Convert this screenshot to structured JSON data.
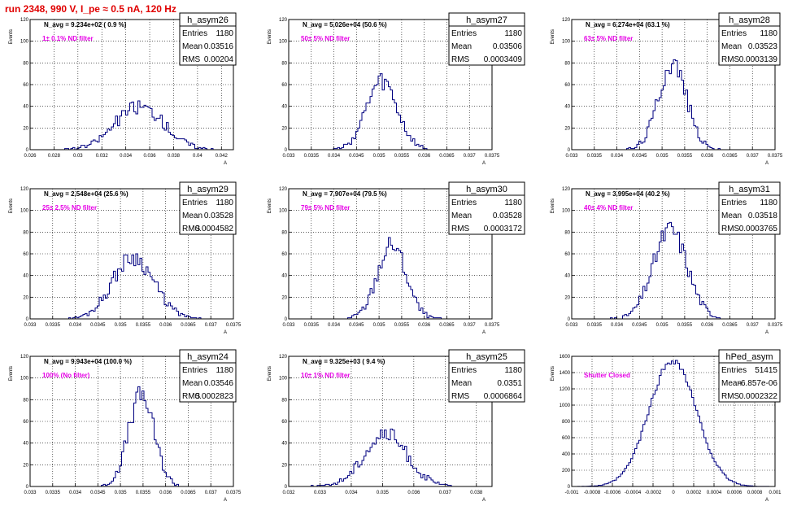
{
  "page": {
    "title": "run 2348,   990 V, I_pe ≈ 0.5 nA, 120 Hz"
  },
  "colors": {
    "line": "#000080",
    "annotation": "#e600e6",
    "title": "#e00000",
    "grid": "#000000"
  },
  "chart_data": [
    {
      "type": "histogram",
      "name": "h_asym26",
      "header": "N_avg = 9.234e+02 ( 0.9 %)",
      "annotation": "1± 0.1% ND filter",
      "ylabel": "Events",
      "xlabel": "A",
      "stats": [
        [
          "Entries",
          "1180"
        ],
        [
          "Mean",
          "0.03516"
        ],
        [
          "RMS",
          "0.00204"
        ]
      ],
      "xlim": [
        0.026,
        0.043
      ],
      "ylim": [
        0,
        120
      ],
      "xticks": [
        "0.026",
        "0.028",
        "0.03",
        "0.032",
        "0.034",
        "0.036",
        "0.038",
        "0.04",
        "0.042"
      ],
      "yticks": [
        "0",
        "20",
        "40",
        "60",
        "80",
        "100",
        "120"
      ],
      "bins": {
        "mean": 0.03516,
        "rms": 0.00204,
        "peak": 40,
        "seed": 26
      },
      "grid": true
    },
    {
      "type": "histogram",
      "name": "h_asym27",
      "header": "N_avg = 5.026e+04 (50.6 %)",
      "annotation": "50± 5% ND filter",
      "ylabel": "Events",
      "xlabel": "A",
      "stats": [
        [
          "Entries",
          "1180"
        ],
        [
          "Mean",
          "0.03506"
        ],
        [
          "RMS",
          "0.0003409"
        ]
      ],
      "xlim": [
        0.033,
        0.0375
      ],
      "ylim": [
        0,
        120
      ],
      "xticks": [
        "0.033",
        "0.0335",
        "0.034",
        "0.0345",
        "0.035",
        "0.0355",
        "0.036",
        "0.0365",
        "0.037",
        "0.0375"
      ],
      "yticks": [
        "0",
        "20",
        "40",
        "60",
        "80",
        "100",
        "120"
      ],
      "bins": {
        "mean": 0.03506,
        "rms": 0.0003409,
        "peak": 62,
        "seed": 27
      },
      "grid": true
    },
    {
      "type": "histogram",
      "name": "h_asym28",
      "header": "N_avg = 6.274e+04 (63.1 %)",
      "annotation": "63± 5% ND filter",
      "ylabel": "Events",
      "xlabel": "A",
      "stats": [
        [
          "Entries",
          "1180"
        ],
        [
          "Mean",
          "0.03523"
        ],
        [
          "RMS",
          "0.0003139"
        ]
      ],
      "xlim": [
        0.033,
        0.0375
      ],
      "ylim": [
        0,
        120
      ],
      "xticks": [
        "0.033",
        "0.0335",
        "0.034",
        "0.0345",
        "0.035",
        "0.0355",
        "0.036",
        "0.0365",
        "0.037",
        "0.0375"
      ],
      "yticks": [
        "0",
        "20",
        "40",
        "60",
        "80",
        "100",
        "120"
      ],
      "bins": {
        "mean": 0.03523,
        "rms": 0.0003139,
        "peak": 80,
        "seed": 28
      },
      "grid": true
    },
    {
      "type": "histogram",
      "name": "h_asym29",
      "header": "N_avg = 2.548e+04 (25.6 %)",
      "annotation": "25± 2.5% ND filter",
      "ylabel": "Events",
      "xlabel": "A",
      "stats": [
        [
          "Entries",
          "1180"
        ],
        [
          "Mean",
          "0.03528"
        ],
        [
          "RMS",
          "0.0004582"
        ]
      ],
      "xlim": [
        0.033,
        0.0375
      ],
      "ylim": [
        0,
        120
      ],
      "xticks": [
        "0.033",
        "0.0335",
        "0.034",
        "0.0345",
        "0.035",
        "0.0355",
        "0.036",
        "0.0365",
        "0.037",
        "0.0375"
      ],
      "yticks": [
        "0",
        "20",
        "40",
        "60",
        "80",
        "100",
        "120"
      ],
      "bins": {
        "mean": 0.03528,
        "rms": 0.0004582,
        "peak": 57,
        "seed": 29
      },
      "grid": true
    },
    {
      "type": "histogram",
      "name": "h_asym30",
      "header": "N_avg = 7.907e+04 (79.5 %)",
      "annotation": "79± 5% ND filter",
      "ylabel": "Events",
      "xlabel": "A",
      "stats": [
        [
          "Entries",
          "1180"
        ],
        [
          "Mean",
          "0.03528"
        ],
        [
          "RMS",
          "0.0003172"
        ]
      ],
      "xlim": [
        0.033,
        0.0375
      ],
      "ylim": [
        0,
        120
      ],
      "xticks": [
        "0.033",
        "0.0335",
        "0.034",
        "0.0345",
        "0.035",
        "0.0355",
        "0.036",
        "0.0365",
        "0.037",
        "0.0375"
      ],
      "yticks": [
        "0",
        "20",
        "40",
        "60",
        "80",
        "100",
        "120"
      ],
      "bins": {
        "mean": 0.03528,
        "rms": 0.0003172,
        "peak": 68,
        "seed": 30
      },
      "grid": true
    },
    {
      "type": "histogram",
      "name": "h_asym31",
      "header": "N_avg = 3.995e+04 (40.2 %)",
      "annotation": "40± 4% ND filter",
      "ylabel": "Events",
      "xlabel": "A",
      "stats": [
        [
          "Entries",
          "1180"
        ],
        [
          "Mean",
          "0.03518"
        ],
        [
          "RMS",
          "0.0003765"
        ]
      ],
      "xlim": [
        0.033,
        0.0375
      ],
      "ylim": [
        0,
        120
      ],
      "xticks": [
        "0.033",
        "0.0335",
        "0.034",
        "0.0345",
        "0.035",
        "0.0355",
        "0.036",
        "0.0365",
        "0.037",
        "0.0375"
      ],
      "yticks": [
        "0",
        "20",
        "40",
        "60",
        "80",
        "100",
        "120"
      ],
      "bins": {
        "mean": 0.03518,
        "rms": 0.0003765,
        "peak": 82,
        "seed": 31
      },
      "grid": true
    },
    {
      "type": "histogram",
      "name": "h_asym24",
      "header": "N_avg = 9.943e+04 (100.0 %)",
      "annotation": "100% (No filter)",
      "ylabel": "Events",
      "xlabel": "A",
      "stats": [
        [
          "Entries",
          "1180"
        ],
        [
          "Mean",
          "0.03546"
        ],
        [
          "RMS",
          "0.0002823"
        ]
      ],
      "xlim": [
        0.033,
        0.0375
      ],
      "ylim": [
        0,
        120
      ],
      "xticks": [
        "0.033",
        "0.0335",
        "0.034",
        "0.0345",
        "0.035",
        "0.0355",
        "0.036",
        "0.0365",
        "0.037",
        "0.0375"
      ],
      "yticks": [
        "0",
        "20",
        "40",
        "60",
        "80",
        "100",
        "120"
      ],
      "bins": {
        "mean": 0.03546,
        "rms": 0.0002823,
        "peak": 84,
        "seed": 24
      },
      "grid": true
    },
    {
      "type": "histogram",
      "name": "h_asym25",
      "header": "N_avg = 9.325e+03 ( 9.4 %)",
      "annotation": "10± 1% ND filter",
      "ylabel": "Events",
      "xlabel": "A",
      "stats": [
        [
          "Entries",
          "1180"
        ],
        [
          "Mean",
          "0.0351"
        ],
        [
          "RMS",
          "0.0006864"
        ]
      ],
      "xlim": [
        0.032,
        0.0385
      ],
      "ylim": [
        0,
        120
      ],
      "xticks": [
        "0.032",
        "0.033",
        "0.034",
        "0.035",
        "0.036",
        "0.037",
        "0.038"
      ],
      "yticks": [
        "0",
        "20",
        "40",
        "60",
        "80",
        "100",
        "120"
      ],
      "bins": {
        "mean": 0.0351,
        "rms": 0.0006864,
        "peak": 48,
        "seed": 25
      },
      "grid": true
    },
    {
      "type": "histogram",
      "name": "hPed_asym",
      "header": "",
      "annotation": "Shutter Closed",
      "ylabel": "Events",
      "xlabel": "A",
      "stats": [
        [
          "Entries",
          "51415"
        ],
        [
          "Mean",
          "-6.857e-06"
        ],
        [
          "RMS",
          "0.0002322"
        ]
      ],
      "xlim": [
        -0.001,
        0.001
      ],
      "ylim": [
        0,
        1600
      ],
      "xticks": [
        "-0.001",
        "-0.0008",
        "-0.0006",
        "-0.0004",
        "-0.0002",
        "0",
        "0.0002",
        "0.0004",
        "0.0006",
        "0.0008",
        "0.001"
      ],
      "yticks": [
        "0",
        "200",
        "400",
        "600",
        "800",
        "1000",
        "1200",
        "1400",
        "1600"
      ],
      "bins": {
        "mean": -6.857e-06,
        "rms": 0.0002322,
        "peak": 1550,
        "seed": 99
      },
      "grid": true
    }
  ]
}
